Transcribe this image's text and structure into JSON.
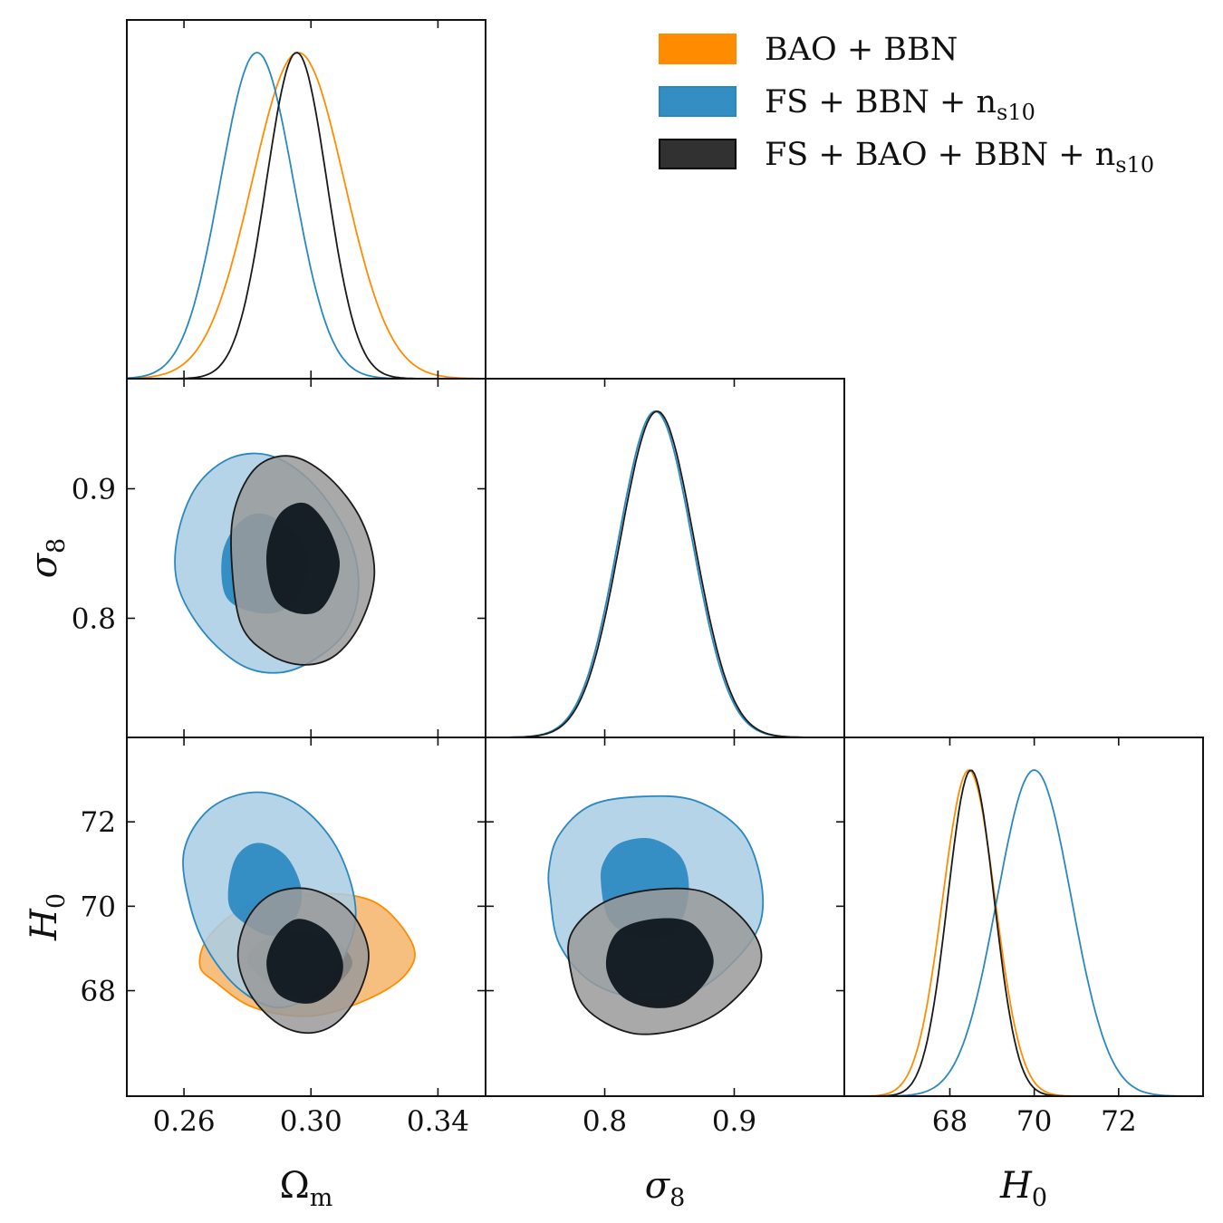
{
  "chart_data": {
    "type": "triangle-corner",
    "parameters": [
      {
        "key": "Om",
        "label_main": "Ω",
        "label_sub": "m",
        "range": [
          0.242,
          0.355
        ],
        "ticks": [
          0.26,
          0.3,
          0.34
        ],
        "tick_labels": [
          "0.26",
          "0.30",
          "0.34"
        ]
      },
      {
        "key": "s8",
        "label_main": "σ",
        "label_sub": "8",
        "range": [
          0.708,
          0.985
        ],
        "ticks": [
          0.8,
          0.9
        ],
        "tick_labels": [
          "0.8",
          "0.9"
        ]
      },
      {
        "key": "H0",
        "label_main": "H",
        "label_sub": "0",
        "range": [
          65.5,
          74.0
        ],
        "ticks": [
          68,
          70,
          72
        ],
        "tick_labels": [
          "68",
          "70",
          "72"
        ]
      }
    ],
    "legend": {
      "placement": "top-right",
      "entries": [
        {
          "label": "BAO + BBN",
          "color": "#ff8c00"
        },
        {
          "label": "FS + BBN + n",
          "sub": "s10",
          "color": "#2a88c0"
        },
        {
          "label": "FS + BAO + BBN + n",
          "sub": "s10",
          "color": "#262626"
        }
      ]
    },
    "series": [
      {
        "name": "BAO + BBN",
        "color": "#ff8c00",
        "fill_inner": "#1a0e00",
        "fill_outer": "#f5b46a",
        "marginals": {
          "Om": {
            "mean": 0.296,
            "sigma": 0.0145
          },
          "H0": {
            "mean": 68.45,
            "sigma": 0.62
          }
        },
        "contours": [
          {
            "x": "Om",
            "y": "H0",
            "outer": [
              [
                0.27,
                68.2
              ],
              [
                0.282,
                67.6
              ],
              [
                0.3,
                67.4
              ],
              [
                0.318,
                67.8
              ],
              [
                0.33,
                68.4
              ],
              [
                0.332,
                69.1
              ],
              [
                0.32,
                70.1
              ],
              [
                0.3,
                70.3
              ],
              [
                0.28,
                70.0
              ],
              [
                0.268,
                69.3
              ],
              [
                0.265,
                68.6
              ]
            ],
            "inner": [
              [
                0.283,
                68.4
              ],
              [
                0.29,
                68.0
              ],
              [
                0.3,
                67.8
              ],
              [
                0.309,
                68.2
              ],
              [
                0.313,
                68.7
              ],
              [
                0.307,
                69.2
              ],
              [
                0.296,
                69.4
              ],
              [
                0.285,
                69.2
              ],
              [
                0.28,
                68.8
              ]
            ]
          }
        ]
      },
      {
        "name": "FS + BBN + n_s10",
        "color": "#2a88c0",
        "fill_inner": "#2a88c0",
        "fill_outer": "#a9cde4",
        "marginals": {
          "Om": {
            "mean": 0.283,
            "sigma": 0.0115
          },
          "s8": {
            "mean": 0.839,
            "sigma": 0.0285
          },
          "H0": {
            "mean": 70.0,
            "sigma": 0.88
          }
        },
        "contours": [
          {
            "x": "Om",
            "y": "s8",
            "outer": [
              [
                0.266,
                0.79
              ],
              [
                0.278,
                0.764
              ],
              [
                0.29,
                0.758
              ],
              [
                0.301,
                0.768
              ],
              [
                0.311,
                0.79
              ],
              [
                0.315,
                0.823
              ],
              [
                0.312,
                0.862
              ],
              [
                0.301,
                0.903
              ],
              [
                0.288,
                0.925
              ],
              [
                0.275,
                0.924
              ],
              [
                0.264,
                0.902
              ],
              [
                0.258,
                0.864
              ],
              [
                0.258,
                0.826
              ]
            ],
            "inner": [
              [
                0.273,
                0.818
              ],
              [
                0.28,
                0.806
              ],
              [
                0.29,
                0.805
              ],
              [
                0.297,
                0.822
              ],
              [
                0.299,
                0.849
              ],
              [
                0.292,
                0.872
              ],
              [
                0.283,
                0.881
              ],
              [
                0.276,
                0.87
              ],
              [
                0.272,
                0.848
              ]
            ]
          },
          {
            "x": "Om",
            "y": "H0",
            "outer": [
              [
                0.262,
                70.0
              ],
              [
                0.268,
                68.9
              ],
              [
                0.278,
                68.0
              ],
              [
                0.29,
                67.6
              ],
              [
                0.302,
                68.0
              ],
              [
                0.311,
                68.9
              ],
              [
                0.314,
                70.0
              ],
              [
                0.308,
                71.4
              ],
              [
                0.296,
                72.4
              ],
              [
                0.282,
                72.7
              ],
              [
                0.268,
                72.3
              ],
              [
                0.26,
                71.3
              ]
            ],
            "inner": [
              [
                0.274,
                70.1
              ],
              [
                0.279,
                69.6
              ],
              [
                0.288,
                69.3
              ],
              [
                0.295,
                69.7
              ],
              [
                0.297,
                70.4
              ],
              [
                0.292,
                71.2
              ],
              [
                0.283,
                71.5
              ],
              [
                0.276,
                71.1
              ]
            ]
          },
          {
            "x": "s8",
            "y": "H0",
            "outer": [
              [
                0.758,
                70.2
              ],
              [
                0.765,
                69.1
              ],
              [
                0.79,
                68.2
              ],
              [
                0.83,
                67.8
              ],
              [
                0.87,
                68.0
              ],
              [
                0.9,
                68.7
              ],
              [
                0.92,
                69.6
              ],
              [
                0.92,
                70.7
              ],
              [
                0.905,
                71.8
              ],
              [
                0.87,
                72.5
              ],
              [
                0.83,
                72.6
              ],
              [
                0.79,
                72.4
              ],
              [
                0.765,
                71.7
              ],
              [
                0.757,
                70.9
              ]
            ],
            "inner": [
              [
                0.797,
                70.6
              ],
              [
                0.803,
                69.7
              ],
              [
                0.822,
                69.3
              ],
              [
                0.847,
                69.3
              ],
              [
                0.86,
                69.7
              ],
              [
                0.865,
                70.5
              ],
              [
                0.858,
                71.2
              ],
              [
                0.836,
                71.6
              ],
              [
                0.812,
                71.5
              ],
              [
                0.8,
                71.1
              ]
            ]
          }
        ]
      },
      {
        "name": "FS + BAO + BBN + n_s10",
        "color": "#1a1a1a",
        "fill_inner": "#0b131a",
        "fill_outer": "#9a9a9a",
        "marginals": {
          "Om": {
            "mean": 0.2955,
            "sigma": 0.0095
          },
          "s8": {
            "mean": 0.8405,
            "sigma": 0.0285
          },
          "H0": {
            "mean": 68.5,
            "sigma": 0.55
          }
        },
        "contours": [
          {
            "x": "Om",
            "y": "s8",
            "outer": [
              [
                0.278,
                0.795
              ],
              [
                0.287,
                0.772
              ],
              [
                0.298,
                0.764
              ],
              [
                0.308,
                0.772
              ],
              [
                0.316,
                0.798
              ],
              [
                0.32,
                0.836
              ],
              [
                0.316,
                0.875
              ],
              [
                0.306,
                0.908
              ],
              [
                0.294,
                0.925
              ],
              [
                0.283,
                0.917
              ],
              [
                0.276,
                0.885
              ],
              [
                0.275,
                0.845
              ]
            ],
            "inner": [
              [
                0.288,
                0.818
              ],
              [
                0.294,
                0.805
              ],
              [
                0.302,
                0.805
              ],
              [
                0.307,
                0.822
              ],
              [
                0.309,
                0.845
              ],
              [
                0.305,
                0.872
              ],
              [
                0.298,
                0.889
              ],
              [
                0.29,
                0.88
              ],
              [
                0.286,
                0.85
              ]
            ]
          },
          {
            "x": "Om",
            "y": "H0",
            "outer": [
              [
                0.277,
                68.8
              ],
              [
                0.281,
                67.9
              ],
              [
                0.29,
                67.2
              ],
              [
                0.3,
                67.0
              ],
              [
                0.309,
                67.3
              ],
              [
                0.316,
                68.1
              ],
              [
                0.318,
                69.0
              ],
              [
                0.312,
                69.9
              ],
              [
                0.3,
                70.4
              ],
              [
                0.288,
                70.3
              ],
              [
                0.28,
                69.7
              ]
            ],
            "inner": [
              [
                0.286,
                68.6
              ],
              [
                0.29,
                67.9
              ],
              [
                0.3,
                67.7
              ],
              [
                0.308,
                68.1
              ],
              [
                0.31,
                68.7
              ],
              [
                0.305,
                69.4
              ],
              [
                0.296,
                69.7
              ],
              [
                0.289,
                69.3
              ]
            ]
          },
          {
            "x": "s8",
            "y": "H0",
            "outer": [
              [
                0.773,
                68.6
              ],
              [
                0.785,
                67.6
              ],
              [
                0.82,
                67.0
              ],
              [
                0.86,
                67.1
              ],
              [
                0.893,
                67.6
              ],
              [
                0.92,
                68.6
              ],
              [
                0.912,
                69.5
              ],
              [
                0.88,
                70.3
              ],
              [
                0.84,
                70.4
              ],
              [
                0.8,
                70.1
              ],
              [
                0.775,
                69.4
              ]
            ],
            "inner": [
              [
                0.801,
                68.6
              ],
              [
                0.812,
                67.9
              ],
              [
                0.835,
                67.6
              ],
              [
                0.86,
                67.7
              ],
              [
                0.88,
                68.3
              ],
              [
                0.883,
                68.9
              ],
              [
                0.867,
                69.6
              ],
              [
                0.838,
                69.7
              ],
              [
                0.81,
                69.4
              ]
            ]
          }
        ]
      }
    ]
  }
}
